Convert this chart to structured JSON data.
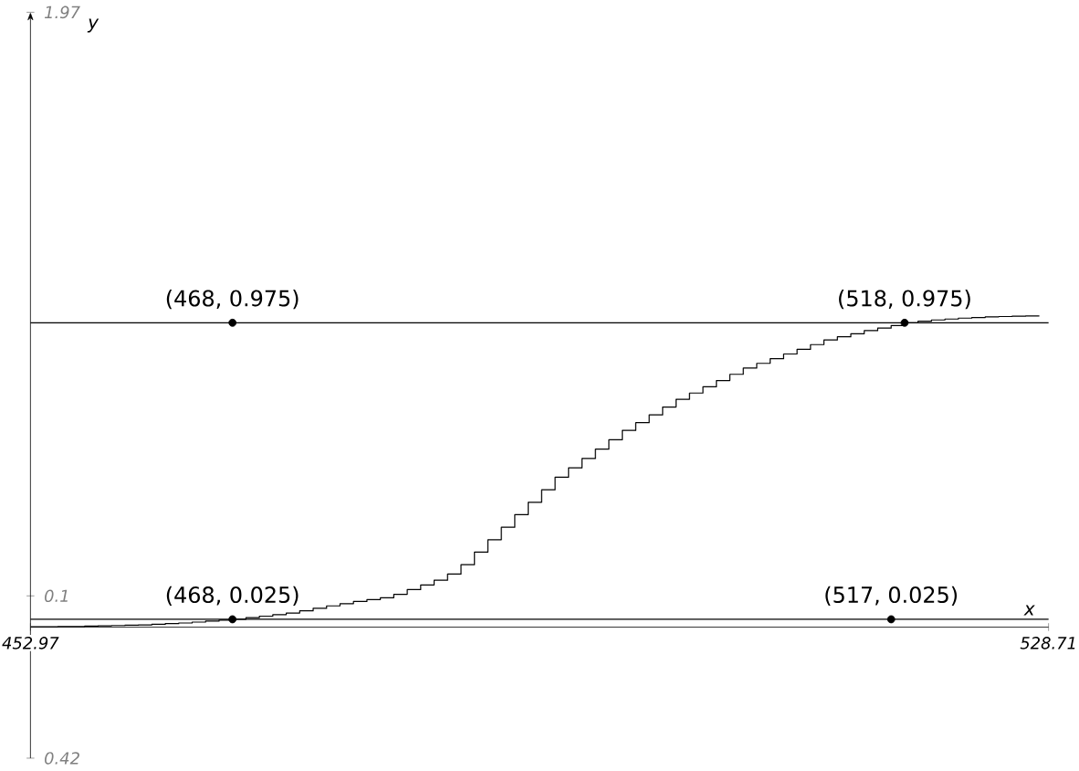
{
  "chart_data": {
    "type": "step",
    "xlabel": "x",
    "ylabel": "y",
    "xlim": [
      452.97,
      528.71
    ],
    "ylim": [
      -0.42,
      1.97
    ],
    "xticks": [
      452.97,
      528.71
    ],
    "yticks": [
      {
        "value": 1.97,
        "label": "1.97"
      },
      {
        "value": 0.1,
        "label": "0.1"
      },
      {
        "value": -0.42,
        "label": "0.42"
      }
    ],
    "series": [
      {
        "type": "step",
        "color": "#000000",
        "x": [
          453,
          454,
          455,
          456,
          457,
          458,
          459,
          460,
          461,
          462,
          463,
          464,
          465,
          466,
          467,
          468,
          469,
          470,
          471,
          472,
          473,
          474,
          475,
          476,
          477,
          478,
          479,
          480,
          481,
          482,
          483,
          484,
          485,
          486,
          487,
          488,
          489,
          490,
          491,
          492,
          493,
          494,
          495,
          496,
          497,
          498,
          499,
          500,
          501,
          502,
          503,
          504,
          505,
          506,
          507,
          508,
          509,
          510,
          511,
          512,
          513,
          514,
          515,
          516,
          517,
          518,
          519,
          520,
          521,
          522,
          523,
          524,
          525,
          526,
          527,
          528
        ],
        "values": [
          0.001,
          0.001,
          0.002,
          0.002,
          0.003,
          0.004,
          0.005,
          0.006,
          0.007,
          0.009,
          0.011,
          0.013,
          0.016,
          0.019,
          0.022,
          0.025,
          0.03,
          0.035,
          0.04,
          0.045,
          0.052,
          0.06,
          0.068,
          0.075,
          0.082,
          0.088,
          0.094,
          0.105,
          0.12,
          0.135,
          0.15,
          0.17,
          0.2,
          0.24,
          0.28,
          0.32,
          0.36,
          0.4,
          0.44,
          0.48,
          0.51,
          0.54,
          0.57,
          0.6,
          0.63,
          0.655,
          0.68,
          0.705,
          0.73,
          0.75,
          0.77,
          0.79,
          0.81,
          0.83,
          0.845,
          0.86,
          0.875,
          0.89,
          0.905,
          0.92,
          0.93,
          0.94,
          0.95,
          0.958,
          0.966,
          0.975,
          0.98,
          0.984,
          0.987,
          0.99,
          0.992,
          0.994,
          0.995,
          0.996,
          0.997,
          0.998
        ]
      },
      {
        "type": "scatter",
        "color": "#000000",
        "x": [
          468,
          518,
          468,
          517
        ],
        "values": [
          0.975,
          0.975,
          0.025,
          0.025
        ]
      }
    ],
    "ref_lines": [
      {
        "axis": "y",
        "value": 0.975,
        "color": "#000000"
      },
      {
        "axis": "y",
        "value": 0.025,
        "color": "#000000"
      }
    ],
    "annotations": [
      {
        "text": "(468, 0.975)",
        "x": 468,
        "y": 0.975
      },
      {
        "text": "(518, 0.975)",
        "x": 518,
        "y": 0.975
      },
      {
        "text": "(468, 0.025)",
        "x": 468,
        "y": 0.025
      },
      {
        "text": "(517, 0.025)",
        "x": 517,
        "y": 0.025
      }
    ],
    "line_style": "solid"
  }
}
